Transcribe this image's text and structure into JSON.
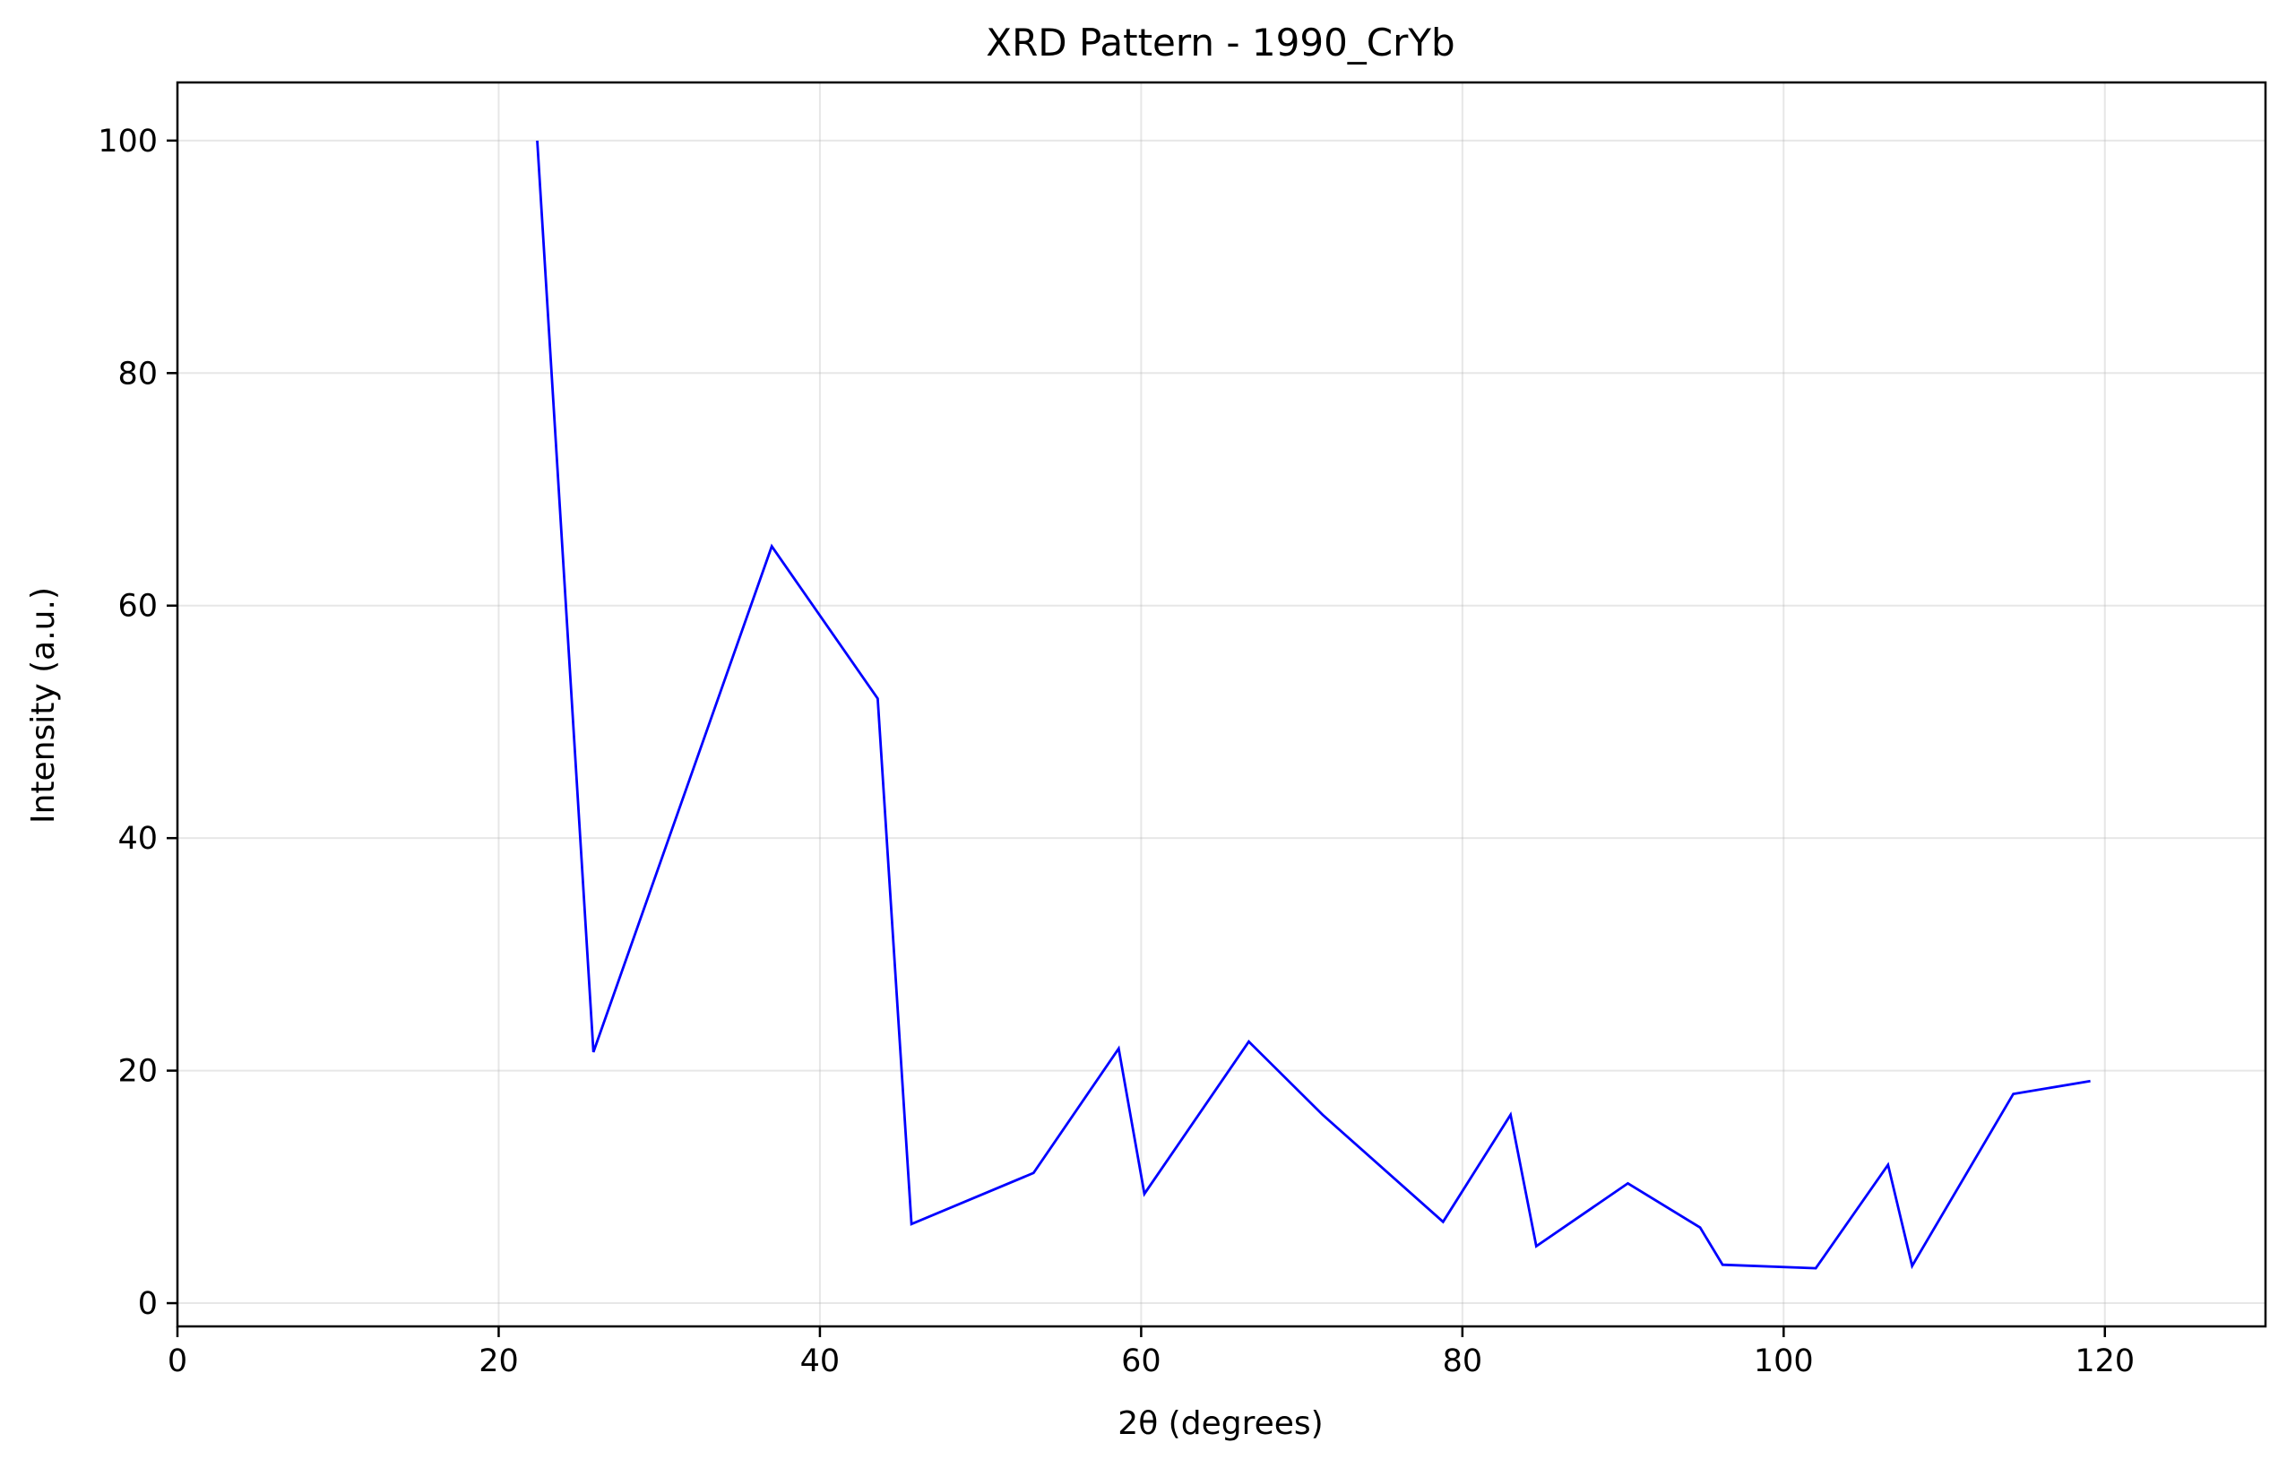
{
  "chart_data": {
    "type": "line",
    "title": "XRD Pattern - 1990_CrYb",
    "xlabel": "2θ (degrees)",
    "ylabel": "Intensity (a.u.)",
    "xlim": [
      0,
      130
    ],
    "ylim": [
      -2,
      105
    ],
    "xticks": [
      0,
      20,
      40,
      60,
      80,
      100,
      120
    ],
    "yticks": [
      0,
      20,
      40,
      60,
      80,
      100
    ],
    "grid": true,
    "series": [
      {
        "color": "#0000ff",
        "x": [
          22.4,
          25.9,
          37.0,
          43.6,
          45.7,
          53.3,
          58.6,
          60.2,
          66.7,
          71.3,
          78.8,
          83.0,
          84.6,
          90.3,
          94.8,
          96.2,
          102.0,
          106.5,
          108.0,
          114.3,
          119.1
        ],
        "y": [
          100.0,
          21.6,
          65.1,
          52.0,
          6.8,
          11.2,
          21.9,
          9.4,
          22.5,
          16.2,
          7.0,
          16.2,
          4.9,
          10.3,
          6.5,
          3.3,
          3.0,
          11.9,
          3.2,
          18.0,
          19.1
        ]
      }
    ]
  }
}
